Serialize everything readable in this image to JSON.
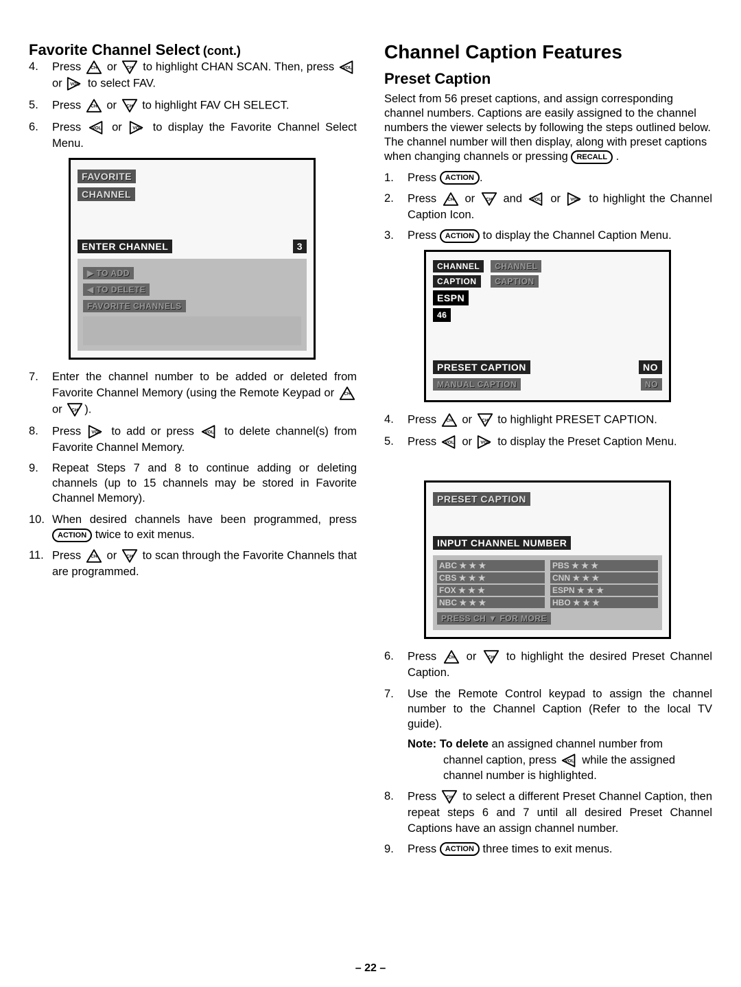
{
  "left": {
    "heading": "Favorite Channel Select",
    "cont": "(cont.)",
    "steps": [
      "Press {CHUP} or {CHDN} to highlight CHAN SCAN. Then, press {VOLDN} or {VOLUP} to select FAV.",
      "Press {CHUP} or {CHDN} to highlight FAV CH SELECT.",
      "Press {VOLDN} or {VOLUP} to display the Favorite Channel Select Menu.",
      "Enter the channel number to be added or deleted from Favorite Channel Memory (using the Remote Keypad or {CHUP} or {CHDN}).",
      "Press {VOLUP} to add or press {VOLDN} to delete channel(s) from Favorite Channel Memory.",
      "Repeat Steps 7 and 8 to continue adding or deleting channels (up to 15 channels may be stored in Favorite Channel Memory).",
      "When desired channels have been programmed, press {ACTION} twice to exit menus.",
      "Press {CHUP} or {CHDN} to scan through the Favorite Channels that are programmed."
    ],
    "osd1": {
      "title1": "FAVORITE",
      "title2": "CHANNEL",
      "row1": "ENTER CHANNEL",
      "row1val": "3",
      "row2": "▶ TO ADD",
      "row3": "◀ TO DELETE",
      "row4": "FAVORITE CHANNELS"
    }
  },
  "right": {
    "h1": "Channel Caption Features",
    "h2": "Preset Caption",
    "intro": "Select from 56 preset captions, and assign corresponding channel numbers. Captions are easily assigned to the channel numbers the viewer selects by following the steps outlined below. The channel number will then display, along with preset captions when changing channels or pressing {RECALL} .",
    "stepsA": [
      "Press {ACTION}.",
      "Press {CHUP} or {CHDN} and {VOLDN} or {VOLUP} to highlight the Channel Caption Icon.",
      "Press {ACTION} to display the Channel Caption Menu."
    ],
    "osd2": {
      "l1": "CHANNEL",
      "l2": "CAPTION",
      "r1": "CHANNEL",
      "r2": "CAPTION",
      "box1": "ESPN",
      "box2": "46",
      "row1": "PRESET CAPTION",
      "row1val": "NO",
      "row2": "MANUAL CAPTION",
      "row2val": "NO"
    },
    "stepsB": [
      "Press {CHUP} or {CHDN} to highlight PRESET CAPTION.",
      "Press {VOLDN} or {VOLUP} to display the Preset Caption Menu."
    ],
    "osd3": {
      "title": "PRESET CAPTION",
      "sub": "INPUT CHANNEL NUMBER",
      "col1": [
        "ABC   ★ ★ ★",
        "CBS   ★ ★ ★",
        "FOX   ★ ★ ★",
        "NBC   ★ ★ ★"
      ],
      "col2": [
        "PBS   ★ ★ ★",
        "CNN  ★ ★ ★",
        "ESPN ★ ★ ★",
        "HBO  ★ ★ ★"
      ],
      "footer": "PRESS CH ▼ FOR MORE"
    },
    "stepsC": [
      "Press {CHUP} or {CHDN} to highlight the desired Preset Channel Caption.",
      "Use the Remote Control keypad to assign the channel number to the Channel Caption (Refer to the local TV guide).",
      "Press {CHDN} to select a different Preset Channel Caption, then repeat steps 6 and 7 until all desired Preset Channel Captions have an assign channel number.",
      "Press {ACTION} three times to exit menus."
    ],
    "note_lead": "Note: To delete",
    "note_rest": " an assigned channel number from",
    "note_cont": "channel caption, press {VOLDN} while the assigned channel number is highlighted."
  },
  "pagenum": "– 22 –",
  "icons": {
    "CHUP": "ch-up-icon",
    "CHDN": "ch-down-icon",
    "VOLUP": "vol-up-icon",
    "VOLDN": "vol-down-icon",
    "ACTION": "ACTION",
    "RECALL": "RECALL"
  }
}
